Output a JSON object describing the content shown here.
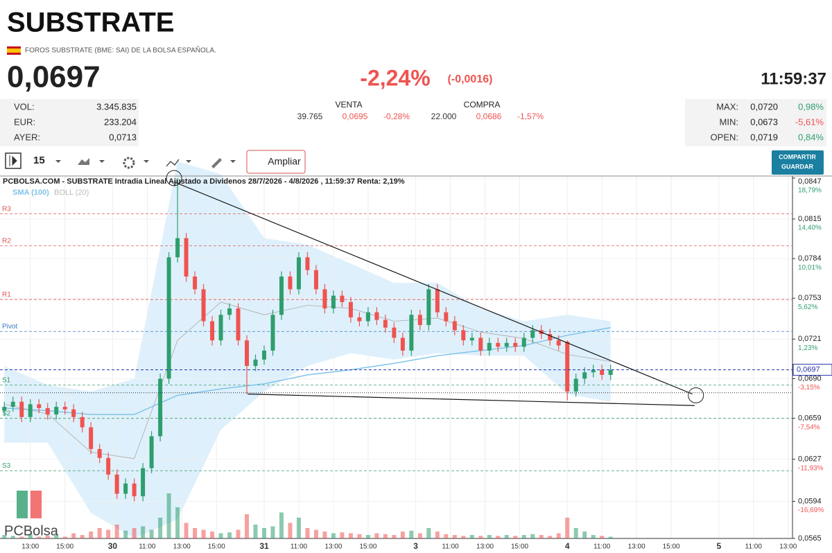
{
  "header": {
    "title": "SUBSTRATE",
    "subtitle": "FOROS SUBSTRATE (BME: SAI) DE LA BOLSA ESPAÑOLA.",
    "price": "0,0697",
    "change_pct": "-2,24%",
    "change_abs": "(-0,0016)",
    "time": "11:59:37"
  },
  "stats_left": [
    {
      "label": "VOL:",
      "value": "3.345.835"
    },
    {
      "label": "EUR:",
      "value": "233.204"
    },
    {
      "label": "AYER:",
      "value": "0,0713"
    }
  ],
  "orders": {
    "headers": [
      "VENTA",
      "COMPRA"
    ],
    "venta": [
      "39.765",
      "0,0695",
      "-0,28%"
    ],
    "compra": [
      "22.000",
      "0,0686",
      "-1,57%"
    ]
  },
  "stats_right": [
    {
      "label": "MAX:",
      "value": "0,0720",
      "pct": "0,98%"
    },
    {
      "label": "MIN:",
      "value": "0,0673",
      "pct": "-5,61%"
    },
    {
      "label": "OPEN:",
      "value": "0,0719",
      "pct": "0,84%"
    }
  ],
  "toolbar": {
    "interval": "15",
    "zoom": "Ampliar",
    "share": "COMPARTIR",
    "save": "GUARDAR"
  },
  "logo": "PCBolsa",
  "chart_data": {
    "type": "candlestick",
    "title": "PCBOLSA.COM - SUBSTRATE Intradia Lineal Ajustado a Dividenos 28/7/2026 - 4/8/2026 , 11:59:37 Renta: 2,19%",
    "up_color": "#2e9e6e",
    "down_color": "#ef5350",
    "x": [
      0,
      2,
      4,
      6,
      8,
      10,
      12,
      14,
      16,
      18,
      20,
      22,
      24,
      26,
      28,
      30,
      32,
      34,
      36,
      38,
      40,
      42,
      44,
      46,
      48,
      50,
      52,
      54,
      56,
      58,
      60,
      62,
      64,
      66,
      68,
      70,
      72,
      74,
      76,
      78,
      80,
      82,
      84,
      86,
      88,
      90,
      92,
      94,
      96,
      98,
      100,
      102,
      104,
      106,
      108,
      110,
      112,
      114,
      116,
      118,
      120,
      122,
      124,
      126,
      128,
      130,
      132,
      134,
      136,
      138,
      140
    ],
    "open": [
      0.0665,
      0.0668,
      0.0672,
      0.066,
      0.067,
      0.0667,
      0.0662,
      0.0668,
      0.0666,
      0.066,
      0.0652,
      0.0635,
      0.0628,
      0.0615,
      0.06,
      0.0608,
      0.0598,
      0.062,
      0.0645,
      0.069,
      0.0785,
      0.08,
      0.077,
      0.076,
      0.0735,
      0.072,
      0.074,
      0.0745,
      0.072,
      0.07,
      0.0705,
      0.0712,
      0.074,
      0.077,
      0.076,
      0.0785,
      0.0775,
      0.076,
      0.0745,
      0.0755,
      0.075,
      0.0738,
      0.0735,
      0.0742,
      0.0736,
      0.073,
      0.0722,
      0.0712,
      0.074,
      0.0732,
      0.076,
      0.0742,
      0.0735,
      0.0728,
      0.072,
      0.0722,
      0.0712,
      0.0718,
      0.0715,
      0.0718,
      0.0715,
      0.0722,
      0.0728,
      0.0725,
      0.072,
      0.0719,
      0.068,
      0.069,
      0.0695,
      0.0697,
      0.0693
    ],
    "high": [
      0.0672,
      0.0676,
      0.0676,
      0.0674,
      0.0674,
      0.0671,
      0.0672,
      0.0672,
      0.067,
      0.0664,
      0.0656,
      0.0639,
      0.0632,
      0.0619,
      0.0612,
      0.0612,
      0.0624,
      0.0649,
      0.0694,
      0.0789,
      0.0847,
      0.0804,
      0.0774,
      0.0764,
      0.0739,
      0.0744,
      0.0749,
      0.0749,
      0.0724,
      0.0709,
      0.0716,
      0.0744,
      0.0774,
      0.0774,
      0.0789,
      0.0789,
      0.0779,
      0.0764,
      0.0759,
      0.0759,
      0.0754,
      0.0742,
      0.0746,
      0.0746,
      0.074,
      0.0734,
      0.0726,
      0.0744,
      0.0744,
      0.0764,
      0.0764,
      0.0746,
      0.0739,
      0.0732,
      0.0726,
      0.0726,
      0.0722,
      0.0722,
      0.0722,
      0.0722,
      0.0726,
      0.0732,
      0.0732,
      0.0729,
      0.0724,
      0.072,
      0.0694,
      0.0699,
      0.0701,
      0.0701,
      0.0701
    ],
    "low": [
      0.0661,
      0.0664,
      0.0656,
      0.0656,
      0.0663,
      0.0658,
      0.0658,
      0.0662,
      0.0656,
      0.0648,
      0.0631,
      0.0624,
      0.0611,
      0.0596,
      0.0596,
      0.0594,
      0.0594,
      0.0616,
      0.0641,
      0.0686,
      0.0781,
      0.0766,
      0.0756,
      0.0731,
      0.0716,
      0.0716,
      0.0736,
      0.0716,
      0.0678,
      0.0696,
      0.0701,
      0.0708,
      0.0736,
      0.0756,
      0.0756,
      0.0771,
      0.0756,
      0.0741,
      0.0741,
      0.0746,
      0.0734,
      0.0731,
      0.0731,
      0.0732,
      0.0726,
      0.0718,
      0.0708,
      0.0708,
      0.0728,
      0.0728,
      0.0738,
      0.0731,
      0.0724,
      0.0716,
      0.0716,
      0.0708,
      0.0708,
      0.0711,
      0.0711,
      0.0711,
      0.0711,
      0.0718,
      0.0721,
      0.0716,
      0.0712,
      0.0673,
      0.0676,
      0.0686,
      0.0691,
      0.0689,
      0.0689
    ],
    "close": [
      0.0668,
      0.0672,
      0.066,
      0.067,
      0.0667,
      0.0662,
      0.0668,
      0.0666,
      0.066,
      0.0652,
      0.0635,
      0.0628,
      0.0615,
      0.06,
      0.0608,
      0.0598,
      0.062,
      0.0645,
      0.069,
      0.0785,
      0.08,
      0.077,
      0.076,
      0.0735,
      0.072,
      0.074,
      0.0745,
      0.072,
      0.07,
      0.0705,
      0.0712,
      0.074,
      0.077,
      0.076,
      0.0785,
      0.0775,
      0.076,
      0.0745,
      0.0755,
      0.075,
      0.0738,
      0.0735,
      0.0742,
      0.0736,
      0.073,
      0.0722,
      0.0712,
      0.074,
      0.0732,
      0.076,
      0.0742,
      0.0735,
      0.0728,
      0.072,
      0.0722,
      0.0712,
      0.0718,
      0.0715,
      0.0718,
      0.0715,
      0.0722,
      0.0728,
      0.0725,
      0.072,
      0.0716,
      0.068,
      0.069,
      0.0695,
      0.0697,
      0.0693,
      0.0697
    ],
    "volume": [
      20,
      15,
      10,
      25,
      10,
      15,
      20,
      10,
      30,
      20,
      40,
      60,
      50,
      80,
      45,
      60,
      70,
      50,
      120,
      260,
      180,
      90,
      60,
      50,
      40,
      30,
      35,
      50,
      140,
      80,
      60,
      70,
      150,
      90,
      120,
      60,
      50,
      40,
      30,
      35,
      30,
      25,
      20,
      30,
      25,
      20,
      40,
      45,
      30,
      60,
      40,
      25,
      20,
      15,
      20,
      15,
      20,
      15,
      20,
      15,
      20,
      25,
      20,
      15,
      30,
      120,
      60,
      40,
      20,
      15,
      10
    ],
    "indicators": [
      {
        "name": "SMA (100)",
        "color": "#7fc4ea",
        "x": [
          0,
          10,
          20,
          30,
          40,
          50,
          60,
          70,
          80,
          90,
          100,
          110,
          120,
          130,
          140
        ],
        "values": [
          0.0667,
          0.0665,
          0.0662,
          0.0662,
          0.0677,
          0.0682,
          0.0686,
          0.0693,
          0.0697,
          0.0702,
          0.0708,
          0.0712,
          0.0716,
          0.0724,
          0.073
        ]
      },
      {
        "name": "BOLL (20)",
        "color": "#aaaaaa",
        "fill": "#d6ecfa",
        "x": [
          0,
          10,
          20,
          30,
          40,
          50,
          60,
          70,
          80,
          90,
          100,
          110,
          120,
          130,
          140
        ],
        "upper": [
          0.07,
          0.0685,
          0.068,
          0.069,
          0.086,
          0.085,
          0.08,
          0.0795,
          0.078,
          0.0765,
          0.0765,
          0.0745,
          0.0735,
          0.074,
          0.0735
        ],
        "lower": [
          0.064,
          0.064,
          0.0585,
          0.0565,
          0.058,
          0.065,
          0.068,
          0.07,
          0.071,
          0.0705,
          0.071,
          0.0708,
          0.0708,
          0.0678,
          0.0672
        ]
      }
    ],
    "levels": [
      {
        "name": "R3",
        "value": 0.0819,
        "color": "#e05555"
      },
      {
        "name": "R2",
        "value": 0.0794,
        "color": "#e05555"
      },
      {
        "name": "R1",
        "value": 0.0752,
        "color": "#e05555"
      },
      {
        "name": "Pivot",
        "value": 0.0727,
        "color": "#3a78c4"
      },
      {
        "name": "S1",
        "value": 0.0685,
        "color": "#3a9a6a"
      },
      {
        "name": "S2",
        "value": 0.0659,
        "color": "#3a9a6a"
      },
      {
        "name": "S3",
        "value": 0.0618,
        "color": "#3a9a6a"
      }
    ],
    "last": {
      "value": 0.0697,
      "label": "0,0697",
      "color": "#2233aa"
    },
    "reference_line": 0.0679,
    "trendlines": [
      {
        "x": [
          39.2,
          158.9
        ],
        "values": [
          0.0844,
          0.0678
        ]
      },
      {
        "x": [
          56.2,
          159.4
        ],
        "values": [
          0.0678,
          0.0669
        ]
      }
    ],
    "circles": {
      "x": [
        39.2,
        159.7
      ],
      "values": [
        0.0847,
        0.0677
      ]
    },
    "ylim": [
      0.0565,
      0.0847
    ],
    "yticks": [
      {
        "value": 0.0847,
        "label": "0,0847"
      },
      {
        "value": 0.0815,
        "label": "0,0815"
      },
      {
        "value": 0.0784,
        "label": "0,0784"
      },
      {
        "value": 0.0753,
        "label": "0,0753"
      },
      {
        "value": 0.0721,
        "label": "0,0721"
      },
      {
        "value": 0.069,
        "label": "0,0690"
      },
      {
        "value": 0.0659,
        "label": "0,0659"
      },
      {
        "value": 0.0627,
        "label": "0,0627"
      },
      {
        "value": 0.0594,
        "label": "0,0594"
      },
      {
        "value": 0.0565,
        "label": "0,0565"
      }
    ],
    "ytick_changes": [
      "18,79%",
      "14,40%",
      "10,01%",
      "5,62%",
      "1,23%",
      "-3,15%",
      "-7,54%",
      "-11,93%",
      "-16,69%",
      null
    ],
    "xlim": [
      -1,
      182
    ],
    "xticks": [
      {
        "value": 6,
        "label": "13:00"
      },
      {
        "value": 14,
        "label": "15:00"
      },
      {
        "value": 25,
        "label": "30"
      },
      {
        "value": 33,
        "label": "11:00"
      },
      {
        "value": 41,
        "label": "13:00"
      },
      {
        "value": 49,
        "label": "15:00"
      },
      {
        "value": 60,
        "label": "31"
      },
      {
        "value": 68,
        "label": "11:00"
      },
      {
        "value": 76,
        "label": "13:00"
      },
      {
        "value": 84,
        "label": "15:00"
      },
      {
        "value": 95,
        "label": "3"
      },
      {
        "value": 103,
        "label": "11:00"
      },
      {
        "value": 111,
        "label": "13:00"
      },
      {
        "value": 119,
        "label": "15:00"
      },
      {
        "value": 130,
        "label": "4"
      },
      {
        "value": 138,
        "label": "11:00"
      },
      {
        "value": 146,
        "label": "13:00"
      },
      {
        "value": 154,
        "label": "15:00"
      },
      {
        "value": 165,
        "label": "5"
      },
      {
        "value": 173,
        "label": "11:00"
      },
      {
        "value": 181,
        "label": "13:00"
      }
    ],
    "grid": true
  }
}
